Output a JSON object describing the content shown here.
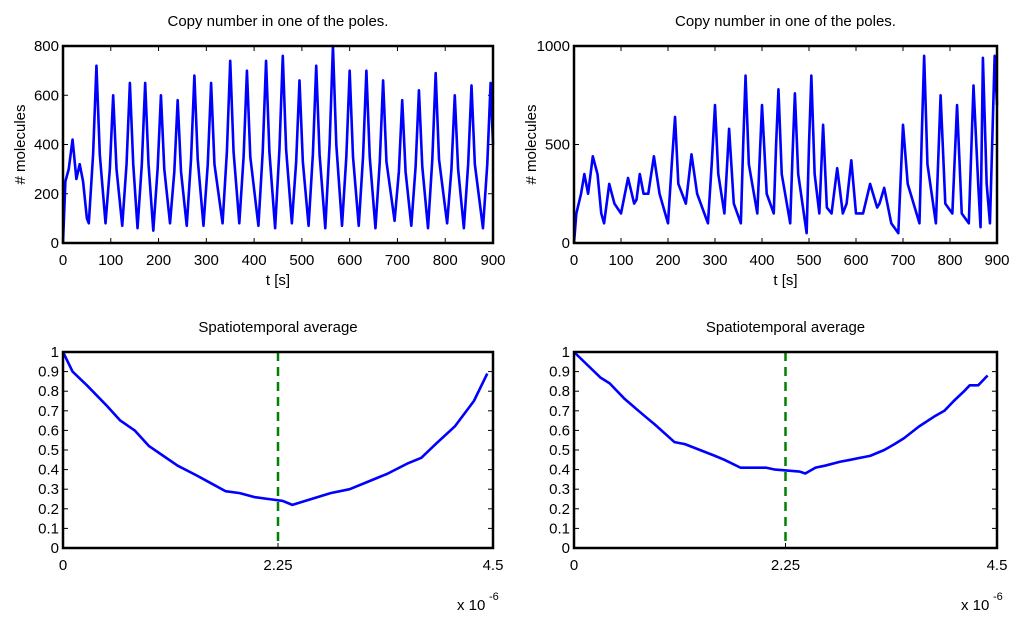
{
  "chart_data": [
    {
      "type": "line",
      "title": "Copy number in one of the poles.",
      "x_label": "t [s]",
      "y_label": "# molecules",
      "xlim": [
        0,
        900
      ],
      "xticks": [
        0,
        100,
        200,
        300,
        400,
        500,
        600,
        700,
        800,
        900
      ],
      "ylim": [
        0,
        800
      ],
      "yticks": [
        0,
        200,
        400,
        600,
        800
      ],
      "color": "#0000ff",
      "x": [
        0,
        5,
        12,
        20,
        28,
        35,
        42,
        50,
        54,
        63,
        70,
        77,
        89,
        98,
        105,
        112,
        124,
        133,
        140,
        147,
        156,
        165,
        172,
        179,
        189,
        198,
        205,
        212,
        224,
        233,
        240,
        247,
        259,
        268,
        275,
        282,
        294,
        303,
        310,
        317,
        334,
        343,
        350,
        357,
        369,
        378,
        385,
        392,
        409,
        418,
        425,
        432,
        444,
        453,
        460,
        467,
        479,
        488,
        495,
        502,
        514,
        523,
        530,
        537,
        549,
        558,
        565,
        572,
        584,
        593,
        600,
        607,
        619,
        628,
        635,
        642,
        654,
        663,
        670,
        677,
        694,
        703,
        710,
        717,
        729,
        738,
        745,
        752,
        764,
        773,
        780,
        787,
        804,
        813,
        820,
        827,
        839,
        848,
        855,
        862,
        879,
        888,
        895,
        900
      ],
      "values": [
        0,
        250,
        300,
        420,
        260,
        320,
        250,
        100,
        80,
        360,
        720,
        360,
        80,
        300,
        600,
        300,
        70,
        320,
        650,
        320,
        60,
        320,
        650,
        320,
        50,
        300,
        600,
        300,
        80,
        290,
        580,
        290,
        70,
        340,
        680,
        340,
        70,
        320,
        650,
        320,
        80,
        370,
        740,
        370,
        80,
        350,
        700,
        350,
        70,
        370,
        740,
        370,
        60,
        380,
        760,
        380,
        80,
        330,
        660,
        330,
        70,
        360,
        720,
        360,
        60,
        400,
        800,
        400,
        70,
        350,
        700,
        350,
        70,
        350,
        700,
        350,
        60,
        330,
        660,
        330,
        90,
        290,
        580,
        290,
        70,
        310,
        620,
        310,
        60,
        340,
        690,
        340,
        80,
        300,
        600,
        300,
        60,
        320,
        640,
        320,
        60,
        320,
        650,
        400
      ]
    },
    {
      "type": "line",
      "title": "Copy number in one of the poles.",
      "x_label": "t [s]",
      "y_label": "# molecules",
      "xlim": [
        0,
        900
      ],
      "xticks": [
        0,
        100,
        200,
        300,
        400,
        500,
        600,
        700,
        800,
        900
      ],
      "ylim": [
        0,
        1000
      ],
      "yticks": [
        0,
        500,
        1000
      ],
      "color": "#0000ff",
      "x": [
        0,
        5,
        15,
        22,
        30,
        40,
        50,
        58,
        64,
        75,
        86,
        100,
        115,
        128,
        133,
        140,
        148,
        158,
        170,
        182,
        200,
        208,
        215,
        222,
        238,
        250,
        262,
        285,
        293,
        300,
        307,
        320,
        330,
        340,
        355,
        360,
        365,
        372,
        390,
        400,
        410,
        425,
        430,
        435,
        442,
        460,
        465,
        470,
        477,
        495,
        500,
        505,
        512,
        522,
        530,
        538,
        548,
        560,
        572,
        580,
        590,
        600,
        615,
        630,
        645,
        650,
        660,
        675,
        690,
        700,
        710,
        735,
        740,
        745,
        752,
        770,
        780,
        790,
        805,
        815,
        825,
        840,
        850,
        860,
        865,
        870,
        878,
        885,
        895,
        900
      ],
      "values": [
        0,
        150,
        250,
        350,
        250,
        440,
        350,
        150,
        100,
        300,
        200,
        150,
        330,
        200,
        220,
        350,
        250,
        250,
        440,
        250,
        100,
        400,
        640,
        300,
        200,
        450,
        250,
        100,
        400,
        700,
        350,
        150,
        580,
        200,
        100,
        500,
        850,
        400,
        150,
        700,
        250,
        150,
        500,
        780,
        350,
        100,
        450,
        760,
        350,
        50,
        500,
        850,
        350,
        150,
        600,
        180,
        150,
        380,
        150,
        200,
        420,
        150,
        150,
        300,
        180,
        200,
        280,
        100,
        50,
        600,
        300,
        100,
        550,
        950,
        400,
        100,
        750,
        200,
        150,
        700,
        150,
        100,
        800,
        300,
        80,
        940,
        300,
        100,
        950,
        700
      ]
    },
    {
      "type": "line",
      "title": "Spatiotemporal average",
      "x_scale_label": "x 10",
      "x_scale_exponent": "-6",
      "xlim": [
        0,
        4.5
      ],
      "xticks": [
        0,
        2.25,
        4.5
      ],
      "ylim": [
        0,
        1
      ],
      "yticks": [
        0,
        0.1,
        0.2,
        0.3,
        0.4,
        0.5,
        0.6,
        0.7,
        0.8,
        0.9,
        1
      ],
      "color": "#0000ff",
      "vline": 2.25,
      "vline_color": "#008000",
      "x": [
        0,
        0.1,
        0.25,
        0.45,
        0.6,
        0.75,
        0.9,
        1.05,
        1.2,
        1.4,
        1.55,
        1.7,
        1.85,
        2.0,
        2.15,
        2.3,
        2.4,
        2.6,
        2.8,
        3.0,
        3.2,
        3.4,
        3.6,
        3.75,
        3.9,
        4.1,
        4.3,
        4.44
      ],
      "values": [
        1,
        0.9,
        0.83,
        0.73,
        0.65,
        0.6,
        0.52,
        0.47,
        0.42,
        0.37,
        0.33,
        0.29,
        0.28,
        0.26,
        0.25,
        0.24,
        0.22,
        0.25,
        0.28,
        0.3,
        0.34,
        0.38,
        0.43,
        0.46,
        0.53,
        0.62,
        0.75,
        0.89
      ]
    },
    {
      "type": "line",
      "title": "Spatiotemporal average",
      "x_scale_label": "x 10",
      "x_scale_exponent": "-6",
      "xlim": [
        0,
        4.5
      ],
      "xticks": [
        0,
        2.25,
        4.5
      ],
      "ylim": [
        0,
        1
      ],
      "yticks": [
        0,
        0.1,
        0.2,
        0.3,
        0.4,
        0.5,
        0.6,
        0.7,
        0.8,
        0.9,
        1
      ],
      "color": "#0000ff",
      "vline": 2.25,
      "vline_color": "#008000",
      "x": [
        0,
        0.28,
        0.38,
        0.54,
        0.76,
        0.86,
        1.07,
        1.18,
        1.34,
        1.5,
        1.6,
        1.77,
        2.04,
        2.14,
        2.4,
        2.46,
        2.57,
        2.67,
        2.83,
        2.94,
        3.04,
        3.15,
        3.3,
        3.41,
        3.51,
        3.67,
        3.83,
        3.94,
        4.04,
        4.15,
        4.21,
        4.3,
        4.4
      ],
      "values": [
        1,
        0.87,
        0.84,
        0.76,
        0.67,
        0.63,
        0.54,
        0.53,
        0.5,
        0.47,
        0.45,
        0.41,
        0.41,
        0.4,
        0.39,
        0.38,
        0.41,
        0.42,
        0.44,
        0.45,
        0.46,
        0.47,
        0.5,
        0.53,
        0.56,
        0.62,
        0.67,
        0.7,
        0.75,
        0.8,
        0.83,
        0.83,
        0.88
      ]
    }
  ]
}
